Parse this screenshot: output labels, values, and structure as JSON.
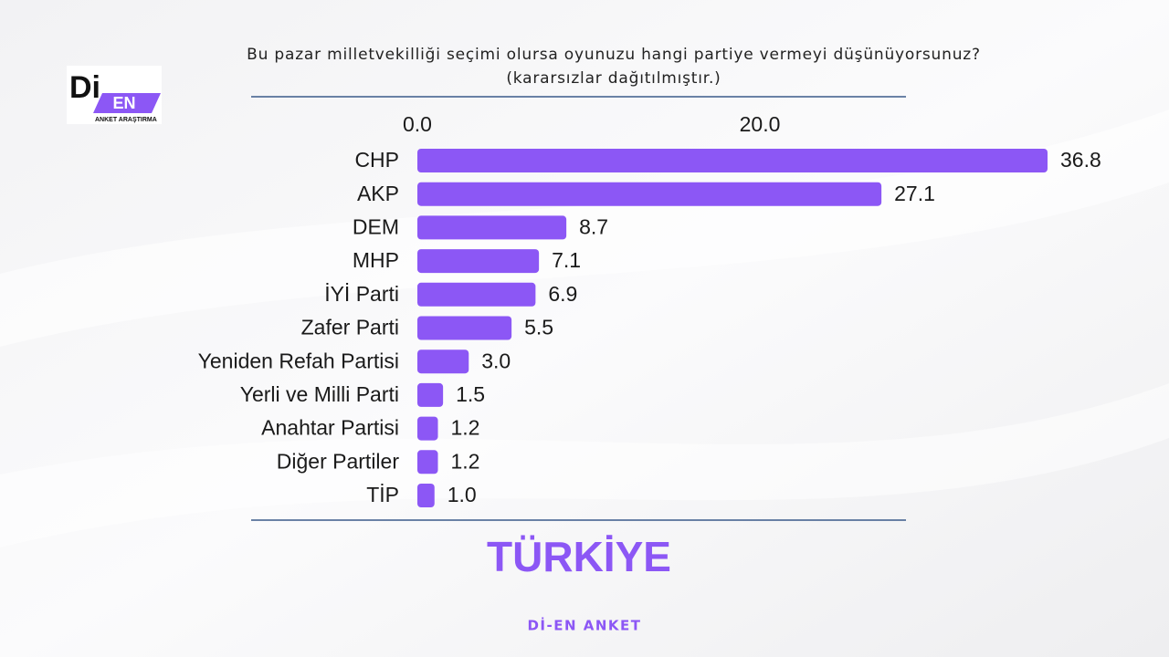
{
  "logo": {
    "primary": "Di",
    "secondary": "EN",
    "tagline": "ANKET ARAŞTIRMA"
  },
  "chart_data": {
    "type": "bar",
    "orientation": "horizontal",
    "title": "Bu pazar milletvekilliği seçimi olursa oyunuzu hangi partiye vermeyi düşünüyorsunuz?",
    "subtitle": "(kararsızlar dağıtılmıştır.)",
    "categories": [
      "CHP",
      "AKP",
      "DEM",
      "MHP",
      "İYİ Parti",
      "Zafer Parti",
      "Yeniden Refah Partisi",
      "Yerli ve Milli Parti",
      "Anahtar Partisi",
      "Diğer Partiler",
      "TİP"
    ],
    "values": [
      36.8,
      27.1,
      8.7,
      7.1,
      6.9,
      5.5,
      3.0,
      1.5,
      1.2,
      1.2,
      1.0
    ],
    "value_labels": [
      "36.8",
      "27.1",
      "8.7",
      "7.1",
      "6.9",
      "5.5",
      "3.0",
      "1.5",
      "1.2",
      "1.2",
      "1.0"
    ],
    "color": "#8c57f5",
    "xlim": [
      0,
      40
    ],
    "xticks": [
      {
        "value": 0,
        "label": "0.0"
      },
      {
        "value": 20,
        "label": "20.0"
      }
    ],
    "annotations": [
      "TÜRKİYE",
      "Dİ-EN ANKET"
    ]
  }
}
